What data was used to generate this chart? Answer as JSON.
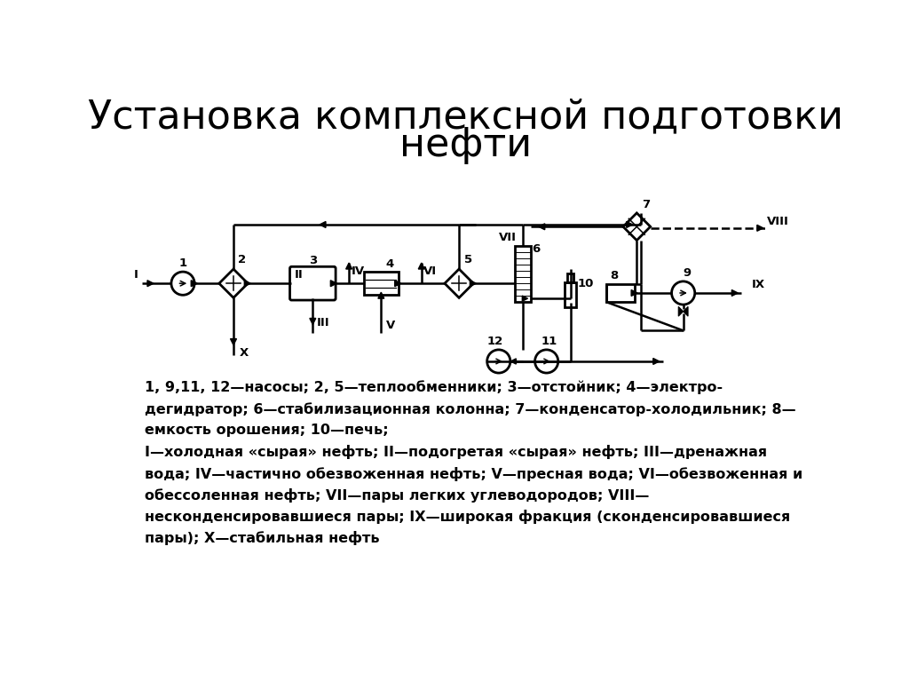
{
  "title_line1": "Установка комплексной подготовки",
  "title_line2": "нефти",
  "title_fontsize": 32,
  "bg_color": "#ffffff",
  "line_color": "#000000",
  "caption_lines": [
    "1, 9,11, 12—насосы; 2, 5—теплообменники; 3—отстойник; 4—электро-",
    "дегидратор; 6—стабилизационная колонна; 7—конденсатор-холодильник; 8—",
    "емкость орошения; 10—печь;",
    "I—холодная «сырая» нефть; II—подогретая «сырая» нефть; III—дренажная",
    "вода; IV—частично обезвоженная нефть; V—пресная вода; VI—обезвоженная и",
    "обессоленная нефть; VII—пары легких углеводородов; VIII—",
    "несконденсировавшиеся пары; IX—широкая фракция (сконденсировавшиеся",
    "пары); X—стабильная нефть"
  ],
  "caption_fontsize": 11.5
}
